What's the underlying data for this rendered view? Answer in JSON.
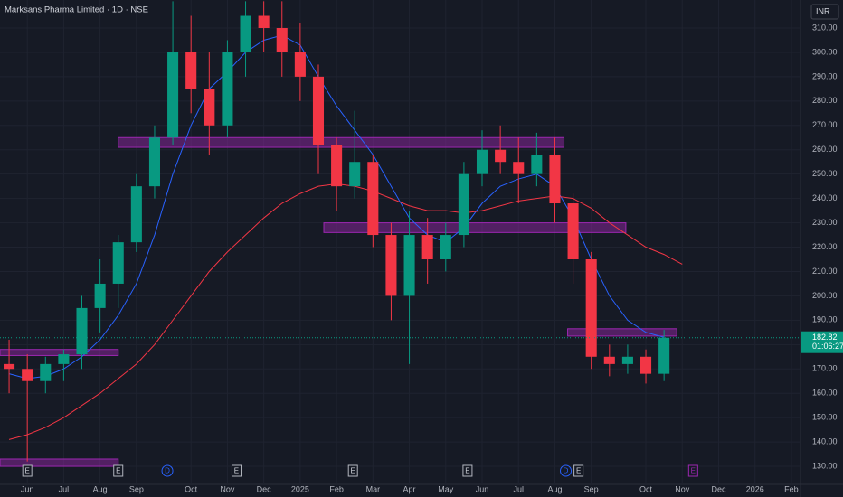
{
  "chart_data": {
    "type": "candlestick",
    "title": "Marksans Pharma Limited · 1D · NSE",
    "currency": "INR",
    "categories": [
      null,
      "Jun",
      null,
      "Jul",
      null,
      "Aug",
      null,
      "Sep",
      null,
      null,
      "Oct",
      null,
      "Nov",
      null,
      "Dec",
      null,
      "2025",
      null,
      "Feb",
      null,
      "Mar",
      null,
      "Apr",
      null,
      "May",
      null,
      "Jun",
      null,
      "Jul",
      null,
      "Aug",
      null,
      "Sep",
      null,
      null,
      "Oct",
      null,
      "Nov",
      null,
      "Dec",
      null,
      "2026",
      null,
      "Feb"
    ],
    "open": [
      172,
      170,
      165,
      172,
      176,
      195,
      205,
      222,
      245,
      265,
      300,
      285,
      270,
      300,
      315,
      310,
      300,
      290,
      262,
      245,
      255,
      225,
      200,
      225,
      215,
      225,
      250,
      260,
      255,
      250,
      258,
      238,
      215,
      175,
      172,
      175,
      168,
      null,
      null,
      null,
      null,
      null,
      null,
      null
    ],
    "high": [
      182,
      176,
      175,
      178,
      200,
      215,
      225,
      250,
      270,
      321,
      315,
      300,
      305,
      321,
      321,
      321,
      312,
      295,
      265,
      276,
      258,
      230,
      235,
      232,
      230,
      255,
      268,
      270,
      265,
      267,
      265,
      242,
      218,
      180,
      180,
      178,
      186,
      null,
      null,
      null,
      null,
      null,
      null,
      null
    ],
    "low": [
      160,
      132,
      160,
      165,
      170,
      185,
      195,
      218,
      240,
      262,
      275,
      258,
      265,
      290,
      300,
      290,
      280,
      250,
      235,
      240,
      220,
      190,
      172,
      205,
      210,
      220,
      245,
      250,
      238,
      245,
      230,
      205,
      170,
      167,
      168,
      164,
      165,
      null,
      null,
      null,
      null,
      null,
      null,
      null
    ],
    "close": [
      170,
      165,
      172,
      176,
      195,
      205,
      222,
      245,
      265,
      300,
      285,
      270,
      300,
      315,
      310,
      300,
      290,
      262,
      245,
      255,
      225,
      200,
      225,
      215,
      225,
      250,
      260,
      255,
      250,
      258,
      238,
      215,
      175,
      172,
      175,
      168,
      182.82,
      null,
      null,
      null,
      null,
      null,
      null,
      null
    ],
    "up_color": "#089981",
    "down_color": "#f23645",
    "series": [
      {
        "color": "#2962ff",
        "values": [
          168,
          166,
          167,
          170,
          175,
          182,
          192,
          205,
          225,
          250,
          270,
          285,
          292,
          300,
          305,
          307,
          303,
          290,
          278,
          268,
          258,
          245,
          232,
          225,
          222,
          228,
          238,
          245,
          248,
          250,
          245,
          232,
          215,
          200,
          190,
          185,
          183,
          null,
          null,
          null,
          null,
          null,
          null,
          null
        ]
      },
      {
        "color": "#f23645",
        "values": [
          141,
          143,
          146,
          150,
          155,
          160,
          166,
          172,
          180,
          190,
          200,
          210,
          218,
          225,
          232,
          238,
          242,
          245,
          246,
          245,
          243,
          240,
          237,
          235,
          235,
          234,
          235,
          237,
          239,
          240,
          241,
          240,
          236,
          230,
          225,
          220,
          217,
          213,
          null,
          null,
          null,
          null,
          null,
          null
        ]
      }
    ],
    "zones": [
      {
        "from": 6,
        "to": 30.5,
        "low": 261,
        "high": 265
      },
      {
        "from": 17.3,
        "to": 33.9,
        "low": 226,
        "high": 230
      },
      {
        "from": 30.7,
        "to": 36.7,
        "low": 183.5,
        "high": 186.5
      },
      {
        "from": -0.5,
        "to": 6,
        "low": 175.5,
        "high": 178
      },
      {
        "from": -0.5,
        "to": 6,
        "low": 130,
        "high": 133
      }
    ],
    "events": [
      {
        "label": "E",
        "at": 1
      },
      {
        "label": "E",
        "at": 6
      },
      {
        "label": "D",
        "at": 8.7
      },
      {
        "label": "E",
        "at": 12.5
      },
      {
        "label": "E",
        "at": 18.9
      },
      {
        "label": "E",
        "at": 25.2
      },
      {
        "label": "D",
        "at": 30.6
      },
      {
        "label": "E",
        "at": 31.3
      },
      {
        "label": "E",
        "at": 37.6
      }
    ],
    "last_price": 182.82,
    "countdown": "01:06:27",
    "ylim": [
      122.6,
      321.5
    ],
    "yticks": [
      {
        "value": 130,
        "label": "130.00"
      },
      {
        "value": 140,
        "label": "140.00"
      },
      {
        "value": 150,
        "label": "150.00"
      },
      {
        "value": 160,
        "label": "160.00"
      },
      {
        "value": 170,
        "label": "170.00"
      },
      {
        "value": 180,
        "label": "180.00"
      },
      {
        "value": 190,
        "label": "190.00"
      },
      {
        "value": 200,
        "label": "200.00"
      },
      {
        "value": 210,
        "label": "210.00"
      },
      {
        "value": 220,
        "label": "220.00"
      },
      {
        "value": 230,
        "label": "230.00"
      },
      {
        "value": 240,
        "label": "240.00"
      },
      {
        "value": 250,
        "label": "250.00"
      },
      {
        "value": 260,
        "label": "260.00"
      },
      {
        "value": 270,
        "label": "270.00"
      },
      {
        "value": 280,
        "label": "280.00"
      },
      {
        "value": 290,
        "label": "290.00"
      },
      {
        "value": 300,
        "label": "300.00"
      },
      {
        "value": 310,
        "label": "310.00"
      }
    ],
    "grid": true
  }
}
